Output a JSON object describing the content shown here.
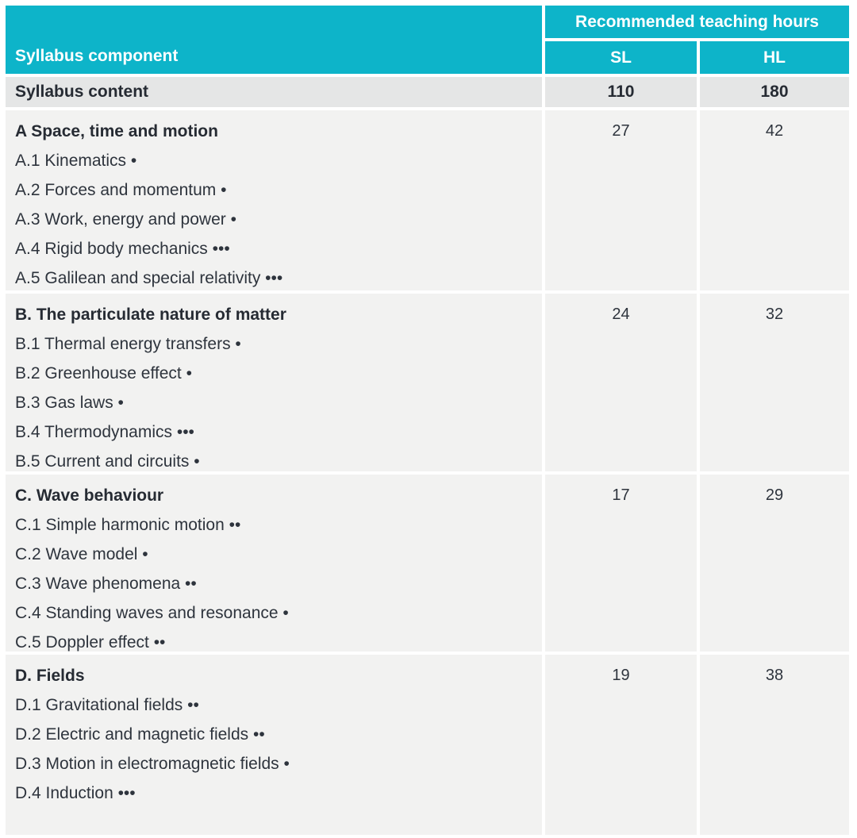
{
  "header": {
    "component": "Syllabus component",
    "hours": "Recommended teaching hours",
    "sl": "SL",
    "hl": "HL"
  },
  "totals": {
    "label": "Syllabus content",
    "sl": "110",
    "hl": "180"
  },
  "sections": [
    {
      "title": "A Space, time and motion",
      "sl": "27",
      "hl": "42",
      "items": [
        "A.1 Kinematics •",
        "A.2 Forces and momentum •",
        "A.3 Work, energy and power •",
        "A.4 Rigid body mechanics •••",
        "A.5 Galilean and special relativity •••"
      ]
    },
    {
      "title": "B. The particulate nature of matter",
      "sl": "24",
      "hl": "32",
      "items": [
        "B.1 Thermal energy transfers •",
        "B.2 Greenhouse effect •",
        "B.3 Gas laws •",
        "B.4 Thermodynamics •••",
        "B.5 Current and circuits •"
      ]
    },
    {
      "title": "C. Wave behaviour",
      "sl": "17",
      "hl": "29",
      "items": [
        "C.1 Simple harmonic motion ••",
        "C.2 Wave model •",
        "C.3 Wave phenomena ••",
        "C.4 Standing waves and resonance •",
        "C.5 Doppler effect ••"
      ]
    },
    {
      "title": "D. Fields",
      "sl": "19",
      "hl": "38",
      "items": [
        "D.1 Gravitational fields ••",
        "D.2 Electric and magnetic fields ••",
        "D.3 Motion in electromagnetic fields •",
        "D.4 Induction •••"
      ]
    }
  ],
  "colors": {
    "accent_teal": "#0db4c9",
    "header_text": "#ffffff",
    "totals_row_bg": "#e5e6e6",
    "section_row_bg": "#f2f2f1",
    "text_dark": "#262b33"
  }
}
